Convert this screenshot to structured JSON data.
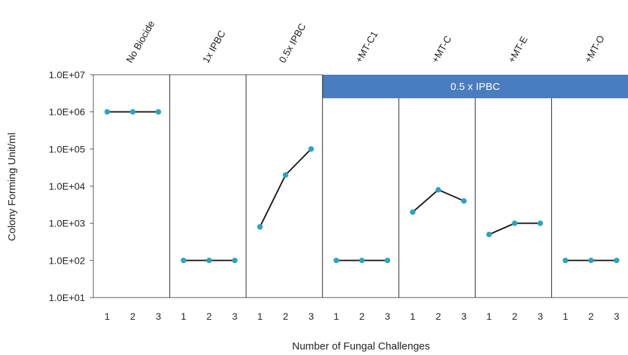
{
  "chart_data": {
    "type": "line",
    "title": "",
    "xlabel": "Number of Fungal Challenges",
    "ylabel": "Colony Forming Unit/ml",
    "yscale": "log",
    "ylim": [
      10,
      10000000
    ],
    "y_tick_labels": [
      "1.0E+01",
      "1.0E+02",
      "1.0E+03",
      "1.0E+04",
      "1.0E+05",
      "1.0E+06",
      "1.0E+07"
    ],
    "y_tick_values": [
      10,
      100,
      1000,
      10000,
      100000,
      1000000,
      10000000
    ],
    "x": [
      1,
      2,
      3
    ],
    "x_tick_labels": [
      "1",
      "2",
      "3"
    ],
    "grid": false,
    "banner": {
      "text": "0.5 x IPBC",
      "color": "#4a7dbf",
      "spans_panels": [
        "+MT-C1",
        "+MT-C",
        "+MT-E",
        "+MT-O"
      ]
    },
    "line_color": "#1a1a1a",
    "marker_color": "#2aa5c1",
    "panels": [
      {
        "name": "No Biocide",
        "values": [
          1000000,
          1000000,
          1000000
        ]
      },
      {
        "name": "1x IPBC",
        "values": [
          100,
          100,
          100
        ]
      },
      {
        "name": "0.5x IPBC",
        "values": [
          800,
          20000,
          100000
        ]
      },
      {
        "name": "+MT-C1",
        "values": [
          100,
          100,
          100
        ]
      },
      {
        "name": "+MT-C",
        "values": [
          2000,
          8000,
          4000
        ]
      },
      {
        "name": "+MT-E",
        "values": [
          500,
          1000,
          1000
        ]
      },
      {
        "name": "+MT-O",
        "values": [
          100,
          100,
          100
        ]
      }
    ]
  }
}
